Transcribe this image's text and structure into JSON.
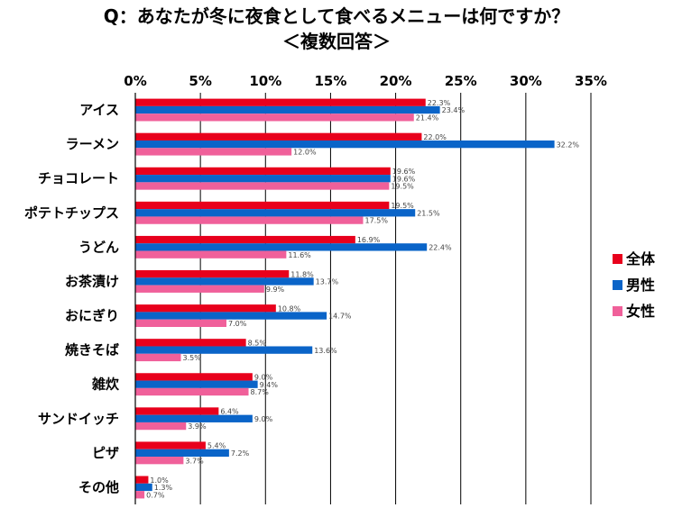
{
  "chart_data": {
    "type": "bar",
    "orientation": "horizontal",
    "title": "Q：あなたが冬に夜食として食べるメニューは何ですか？",
    "subtitle": "＜複数回答＞",
    "categories": [
      "アイス",
      "ラーメン",
      "チョコレート",
      "ポテトチップス",
      "うどん",
      "お茶漬け",
      "おにぎり",
      "焼きそば",
      "雑炊",
      "サンドイッチ",
      "ピザ",
      "その他"
    ],
    "series": [
      {
        "name": "全体",
        "color": "#e8001c",
        "values": [
          22.3,
          22.0,
          19.6,
          19.5,
          16.9,
          11.8,
          10.8,
          8.5,
          9.0,
          6.4,
          5.4,
          1.0
        ]
      },
      {
        "name": "男性",
        "color": "#0a64c8",
        "values": [
          23.4,
          32.2,
          19.6,
          21.5,
          22.4,
          13.7,
          14.7,
          13.6,
          9.4,
          9.0,
          7.2,
          1.3
        ]
      },
      {
        "name": "女性",
        "color": "#f0609a",
        "values": [
          21.4,
          12.0,
          19.5,
          17.5,
          11.6,
          9.9,
          7.0,
          3.5,
          8.7,
          3.9,
          3.7,
          0.7
        ]
      }
    ],
    "data_labels": [
      [
        "22.3%",
        "23.4%",
        "21.4%"
      ],
      [
        "22.0%",
        "32.2%",
        "12.0%"
      ],
      [
        "19.6%",
        "19.6%",
        "19.5%"
      ],
      [
        "19.5%",
        "21.5%",
        "17.5%"
      ],
      [
        "16.9%",
        "22.4%",
        "11.6%"
      ],
      [
        "11.8%",
        "13.7%",
        "9.9%"
      ],
      [
        "10.8%",
        "14.7%",
        "7.0%"
      ],
      [
        "8.5%",
        "13.6%",
        "3.5%"
      ],
      [
        "9.0%",
        "9.4%",
        "8.7%"
      ],
      [
        "6.4%",
        "9.0%",
        "3.9%"
      ],
      [
        "5.4%",
        "7.2%",
        "3.7%"
      ],
      [
        "1.0%",
        "1.3%",
        "0.7%"
      ]
    ],
    "x_ticks": [
      "0%",
      "5%",
      "10%",
      "15%",
      "20%",
      "25%",
      "30%",
      "35%"
    ],
    "xlim": [
      0,
      35
    ],
    "x_axis_position": "top",
    "grid": true,
    "legend_position": "right"
  }
}
